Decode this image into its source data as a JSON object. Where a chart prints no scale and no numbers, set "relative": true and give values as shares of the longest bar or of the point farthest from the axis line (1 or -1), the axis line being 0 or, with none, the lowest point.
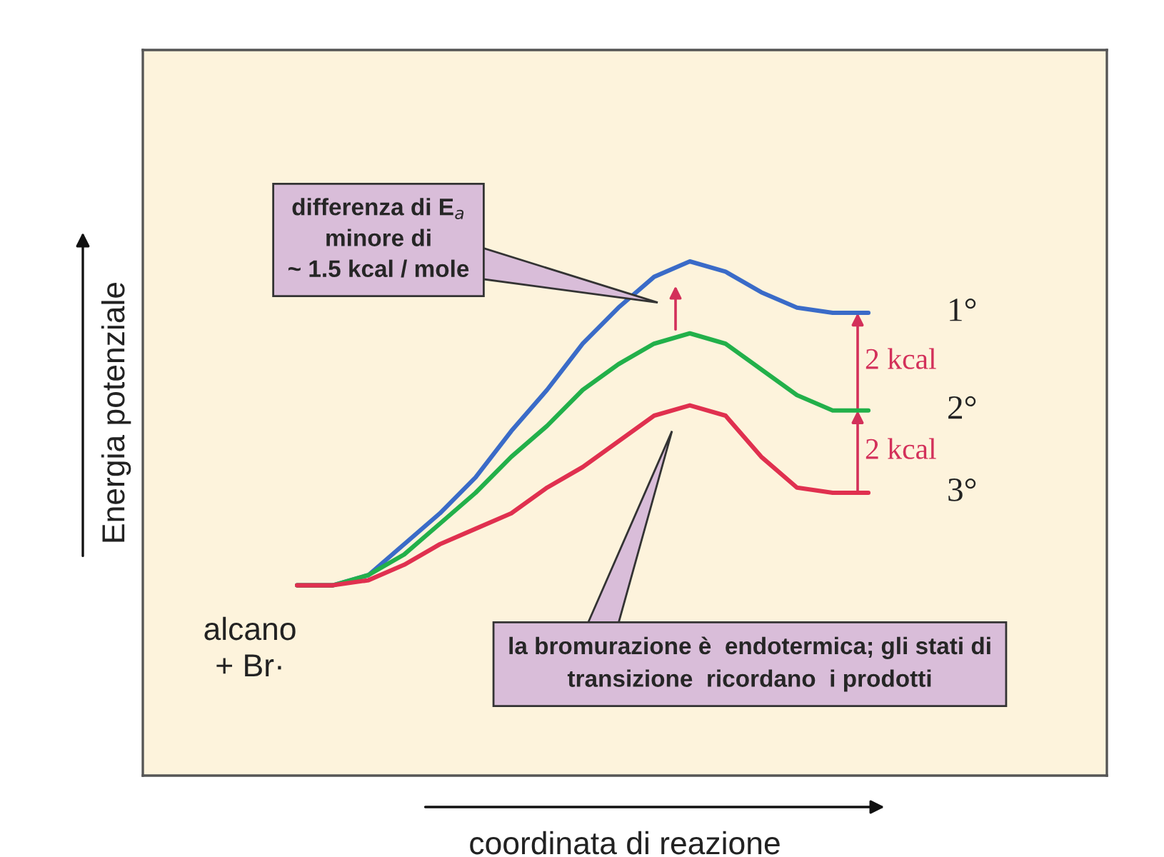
{
  "chart_data": {
    "type": "line",
    "relative": true,
    "xlabel": "coordinata di reazione",
    "ylabel": "Energia potenziale",
    "categories": [
      null,
      null,
      null,
      null,
      null,
      null,
      null,
      null,
      null,
      null,
      null,
      null,
      null,
      null,
      null,
      null,
      null
    ],
    "series": [
      {
        "name": "1°",
        "color": "#3a6bc8",
        "values": [
          0.37,
          0.37,
          0.39,
          0.45,
          0.51,
          0.58,
          0.67,
          0.75,
          0.84,
          0.91,
          0.97,
          1.0,
          0.98,
          0.94,
          0.91,
          0.9,
          0.9
        ]
      },
      {
        "name": "2°",
        "color": "#22b04a",
        "values": [
          0.37,
          0.37,
          0.39,
          0.43,
          0.49,
          0.55,
          0.62,
          0.68,
          0.75,
          0.8,
          0.84,
          0.86,
          0.84,
          0.79,
          0.74,
          0.71,
          0.71
        ]
      },
      {
        "name": "3°",
        "color": "#e0304f",
        "values": [
          0.37,
          0.37,
          0.38,
          0.41,
          0.45,
          0.48,
          0.51,
          0.56,
          0.6,
          0.65,
          0.7,
          0.72,
          0.7,
          0.62,
          0.56,
          0.55,
          0.55
        ]
      }
    ],
    "annotations": [
      "alcano\n+ Br·",
      "differenza di E$_{a}$\nminore di\n~ 1.5 kcal / mole",
      "la bromurazione è  endotermica; gli stati di\ntransizione  ricordano  i prodotti",
      "2 kcal",
      "2 kcal"
    ],
    "legend": false
  }
}
